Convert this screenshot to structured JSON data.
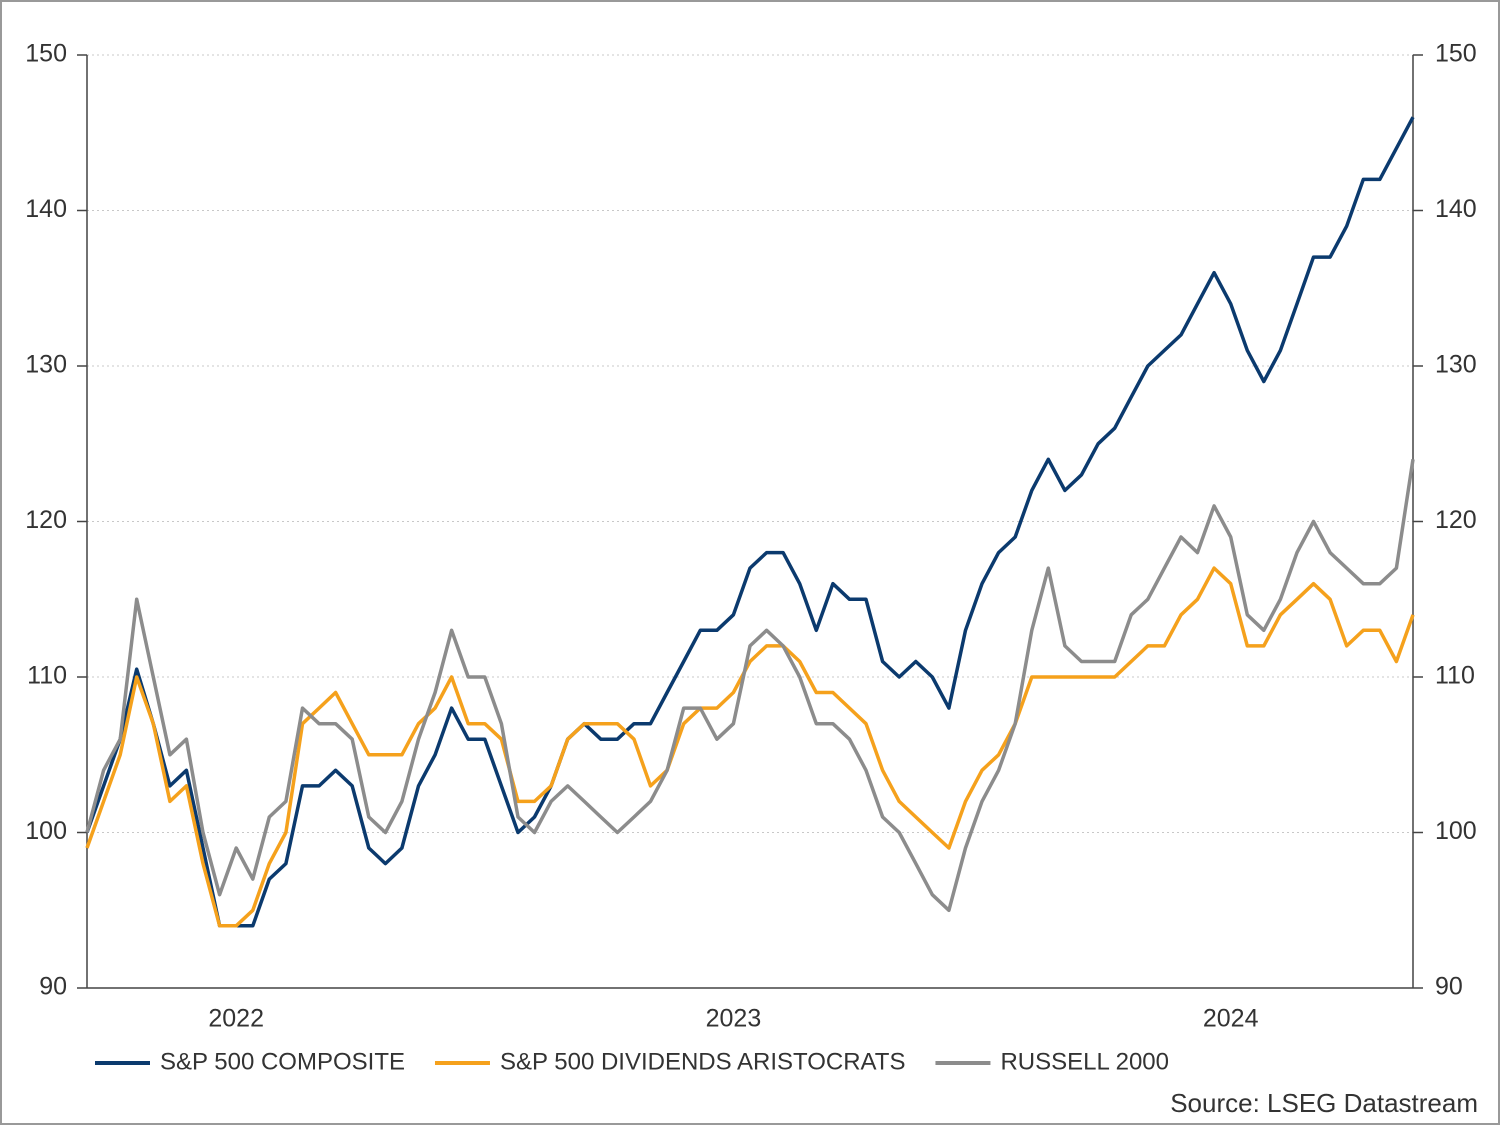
{
  "chart_data": {
    "type": "line",
    "categories": [
      null,
      null,
      null,
      null,
      null,
      null,
      null,
      null,
      null,
      "2022",
      null,
      null,
      null,
      null,
      null,
      null,
      null,
      null,
      null,
      null,
      null,
      null,
      null,
      null,
      null,
      null,
      null,
      null,
      null,
      null,
      null,
      null,
      null,
      null,
      null,
      null,
      null,
      null,
      null,
      "2023",
      null,
      null,
      null,
      null,
      null,
      null,
      null,
      null,
      null,
      null,
      null,
      null,
      null,
      null,
      null,
      null,
      null,
      null,
      null,
      null,
      null,
      null,
      null,
      null,
      null,
      null,
      null,
      null,
      null,
      "2024",
      null,
      null,
      null,
      null,
      null,
      null,
      null,
      null,
      null,
      null,
      null
    ],
    "series": [
      {
        "name": "S&P 500 COMPOSITE",
        "color": "#0b3a6e",
        "values": [
          100,
          103,
          106,
          110.5,
          107,
          103,
          104,
          99,
          94,
          94,
          94,
          97,
          98,
          103,
          103,
          104,
          103,
          99,
          98,
          99,
          103,
          105,
          108,
          106,
          106,
          103,
          100,
          101,
          103,
          106,
          107,
          106,
          106,
          107,
          107,
          109,
          111,
          113,
          113,
          114,
          117,
          118,
          118,
          116,
          113,
          116,
          115,
          115,
          111,
          110,
          111,
          110,
          108,
          113,
          116,
          118,
          119,
          122,
          124,
          122,
          123,
          125,
          126,
          128,
          130,
          131,
          132,
          134,
          136,
          134,
          131,
          129,
          131,
          134,
          137,
          137,
          139,
          142,
          142,
          144,
          146
        ]
      },
      {
        "name": "S&P 500 DIVIDENDS ARISTOCRATS",
        "color": "#f5a11c",
        "values": [
          99,
          102,
          105,
          110,
          107,
          102,
          103,
          98,
          94,
          94,
          95,
          98,
          100,
          107,
          108,
          109,
          107,
          105,
          105,
          105,
          107,
          108,
          110,
          107,
          107,
          106,
          102,
          102,
          103,
          106,
          107,
          107,
          107,
          106,
          103,
          104,
          107,
          108,
          108,
          109,
          111,
          112,
          112,
          111,
          109,
          109,
          108,
          107,
          104,
          102,
          101,
          100,
          99,
          102,
          104,
          105,
          107,
          110,
          110,
          110,
          110,
          110,
          110,
          111,
          112,
          112,
          114,
          115,
          117,
          116,
          112,
          112,
          114,
          115,
          116,
          115,
          112,
          113,
          113,
          111,
          114
        ]
      },
      {
        "name": "RUSSELL 2000",
        "color": "#8c8c8c",
        "values": [
          100,
          104,
          106,
          115,
          110,
          105,
          106,
          100,
          96,
          99,
          97,
          101,
          102,
          108,
          107,
          107,
          106,
          101,
          100,
          102,
          106,
          109,
          113,
          110,
          110,
          107,
          101,
          100,
          102,
          103,
          102,
          101,
          100,
          101,
          102,
          104,
          108,
          108,
          106,
          107,
          112,
          113,
          112,
          110,
          107,
          107,
          106,
          104,
          101,
          100,
          98,
          96,
          95,
          99,
          102,
          104,
          107,
          113,
          117,
          112,
          111,
          111,
          111,
          114,
          115,
          117,
          119,
          118,
          121,
          119,
          114,
          113,
          115,
          118,
          120,
          118,
          117,
          116,
          116,
          117,
          124
        ]
      }
    ],
    "ylim": [
      90,
      150
    ],
    "yticks": [
      90,
      100,
      110,
      120,
      130,
      140,
      150
    ],
    "y2lim": [
      90,
      150
    ],
    "y2ticks": [
      90,
      100,
      110,
      120,
      130,
      140,
      150
    ],
    "grid": true,
    "legend": "bottom",
    "source": "Source: LSEG Datastream"
  }
}
